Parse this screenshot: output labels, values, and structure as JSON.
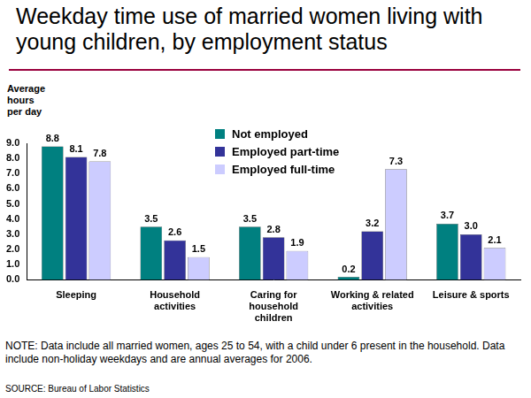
{
  "chart_data": {
    "type": "bar",
    "title": "Weekday time use of married women living with young children, by employment status",
    "y_label": "Average hours per day",
    "categories": [
      "Sleeping",
      "Household activities",
      "Caring for household children",
      "Working & related activities",
      "Leisure & sports"
    ],
    "series": [
      {
        "name": "Not employed",
        "color": "#008080",
        "values": [
          8.8,
          3.5,
          3.5,
          0.2,
          3.7
        ],
        "value_labels": [
          "8.8",
          "3.5",
          "3.5",
          "0.2",
          "3.7"
        ]
      },
      {
        "name": "Employed part-time",
        "color": "#333399",
        "values": [
          8.1,
          2.6,
          2.8,
          3.2,
          3.0
        ],
        "value_labels": [
          "8.1",
          "2.6",
          "2.8",
          "3.2",
          "3.0"
        ]
      },
      {
        "name": "Employed full-time",
        "color": "#ccccff",
        "values": [
          7.8,
          1.5,
          1.9,
          7.3,
          2.1
        ],
        "value_labels": [
          "7.8",
          "1.5",
          "1.9",
          "7.3",
          "2.1"
        ]
      }
    ],
    "ylim": [
      0,
      9
    ],
    "yticks": [
      {
        "value": 0,
        "label": "0.0"
      },
      {
        "value": 1,
        "label": "1.0"
      },
      {
        "value": 2,
        "label": "2.0"
      },
      {
        "value": 3,
        "label": "3.0"
      },
      {
        "value": 4,
        "label": "4.0"
      },
      {
        "value": 5,
        "label": "5.0"
      },
      {
        "value": 6,
        "label": "6.0"
      },
      {
        "value": 7,
        "label": "7.0"
      },
      {
        "value": 8,
        "label": "8.0"
      },
      {
        "value": 9,
        "label": "9.0"
      }
    ],
    "grid": false,
    "legend": "top",
    "data_labels": true,
    "annotations": [
      "NOTE: Data include all married women, ages 25 to 54, with a child under 6 present in the household. Data include non-holiday weekdays and are annual averages for 2006.",
      "SOURCE: Bureau of Labor Statistics"
    ]
  }
}
